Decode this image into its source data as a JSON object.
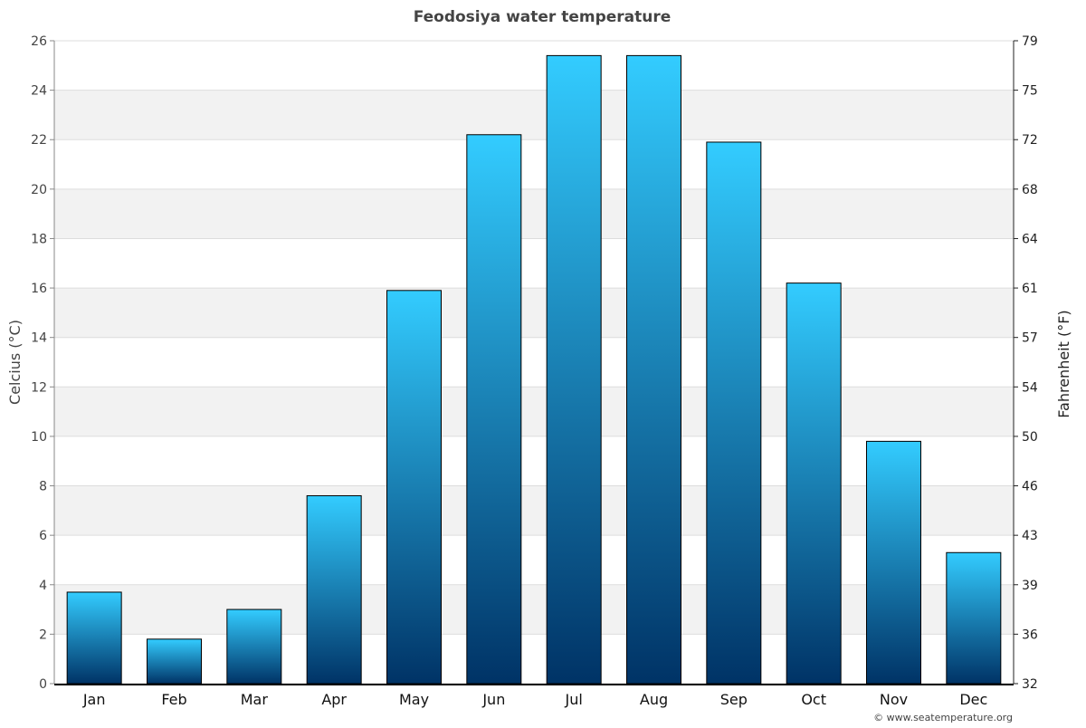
{
  "chart_data": {
    "type": "bar",
    "title": "Feodosiya water temperature",
    "ylabel": "Celcius (°C)",
    "y2label": "Fahrenheit (°F)",
    "categories": [
      "Jan",
      "Feb",
      "Mar",
      "Apr",
      "May",
      "Jun",
      "Jul",
      "Aug",
      "Sep",
      "Oct",
      "Nov",
      "Dec"
    ],
    "values": [
      3.7,
      1.8,
      3.0,
      7.6,
      15.9,
      22.2,
      25.4,
      25.4,
      21.9,
      16.2,
      9.8,
      5.3
    ],
    "ylim": [
      0,
      26
    ],
    "yticks": [
      0,
      2,
      4,
      6,
      8,
      10,
      12,
      14,
      16,
      18,
      20,
      22,
      24,
      26
    ],
    "y2ticks": [
      "32",
      "36",
      "39",
      "43",
      "46",
      "50",
      "54",
      "57",
      "61",
      "64",
      "68",
      "72",
      "75",
      "79"
    ],
    "grid": true,
    "colors": {
      "bar_top": "#33ccff",
      "bar_bottom": "#003366",
      "band": "#f2f2f2"
    }
  },
  "credit": "© www.seatemperature.org"
}
